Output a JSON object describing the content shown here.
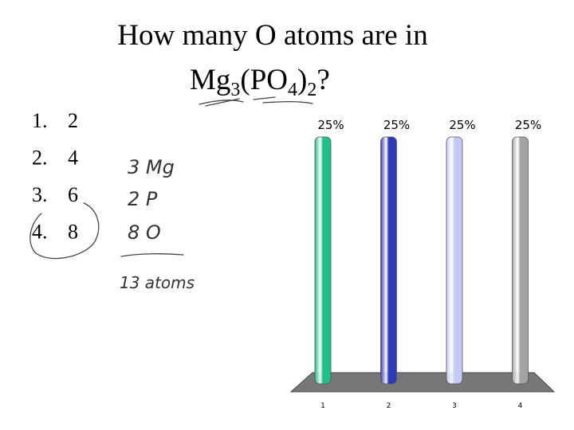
{
  "slide": {
    "title": "How many O atoms are in",
    "formula": [
      "Mg",
      "3",
      "(PO",
      "4",
      ")",
      "2",
      "?"
    ],
    "choices": [
      {
        "number": "1.",
        "text": "2"
      },
      {
        "number": "2.",
        "text": "4"
      },
      {
        "number": "3.",
        "text": "6"
      },
      {
        "number": "4.",
        "text": "8"
      }
    ],
    "annotations": [
      "3 Mg",
      "2 P",
      "8 O",
      "13 atoms"
    ]
  },
  "chart_data": {
    "type": "bar",
    "categories": [
      "1",
      "2",
      "3",
      "4"
    ],
    "values": [
      25,
      25,
      25,
      25
    ],
    "value_labels": [
      "25%",
      "25%",
      "25%",
      "25%"
    ],
    "colors": [
      "#1fbf8c",
      "#2f39b8",
      "#c6c9f6",
      "#a3a3a3"
    ]
  }
}
